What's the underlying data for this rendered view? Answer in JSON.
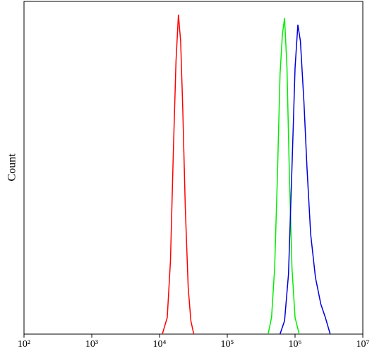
{
  "chart_data": {
    "type": "line",
    "ylabel": "Count",
    "xscale": "log",
    "xlim": [
      100,
      10000000
    ],
    "ylim": [
      0,
      100
    ],
    "xticks": [
      {
        "value": 100,
        "label": "10²"
      },
      {
        "value": 1000,
        "label": "10³"
      },
      {
        "value": 10000,
        "label": "10⁴"
      },
      {
        "value": 100000,
        "label": "10⁵"
      },
      {
        "value": 1000000,
        "label": "10⁶"
      },
      {
        "value": 10000000,
        "label": "10⁷"
      }
    ],
    "series": [
      {
        "color": "#ff0000",
        "x": [
          11000,
          13000,
          14500,
          16000,
          17500,
          19000,
          20500,
          22000,
          24000,
          26500,
          29000,
          32000
        ],
        "values": [
          0,
          5,
          22,
          55,
          82,
          96,
          88,
          68,
          38,
          14,
          4,
          0
        ]
      },
      {
        "color": "#00ee00",
        "x": [
          400000,
          450000,
          500000,
          550000,
          600000,
          650000,
          700000,
          760000,
          820000,
          900000,
          1000000,
          1150000
        ],
        "values": [
          0,
          5,
          20,
          48,
          78,
          90,
          95,
          80,
          50,
          20,
          5,
          0
        ]
      },
      {
        "color": "#0000dd",
        "x": [
          600000,
          700000,
          800000,
          900000,
          1000000,
          1100000,
          1200000,
          1350000,
          1500000,
          1700000,
          2000000,
          2400000,
          2800000,
          3300000
        ],
        "values": [
          0,
          4,
          18,
          50,
          80,
          93,
          88,
          70,
          50,
          30,
          17,
          9,
          5,
          0
        ]
      }
    ]
  }
}
